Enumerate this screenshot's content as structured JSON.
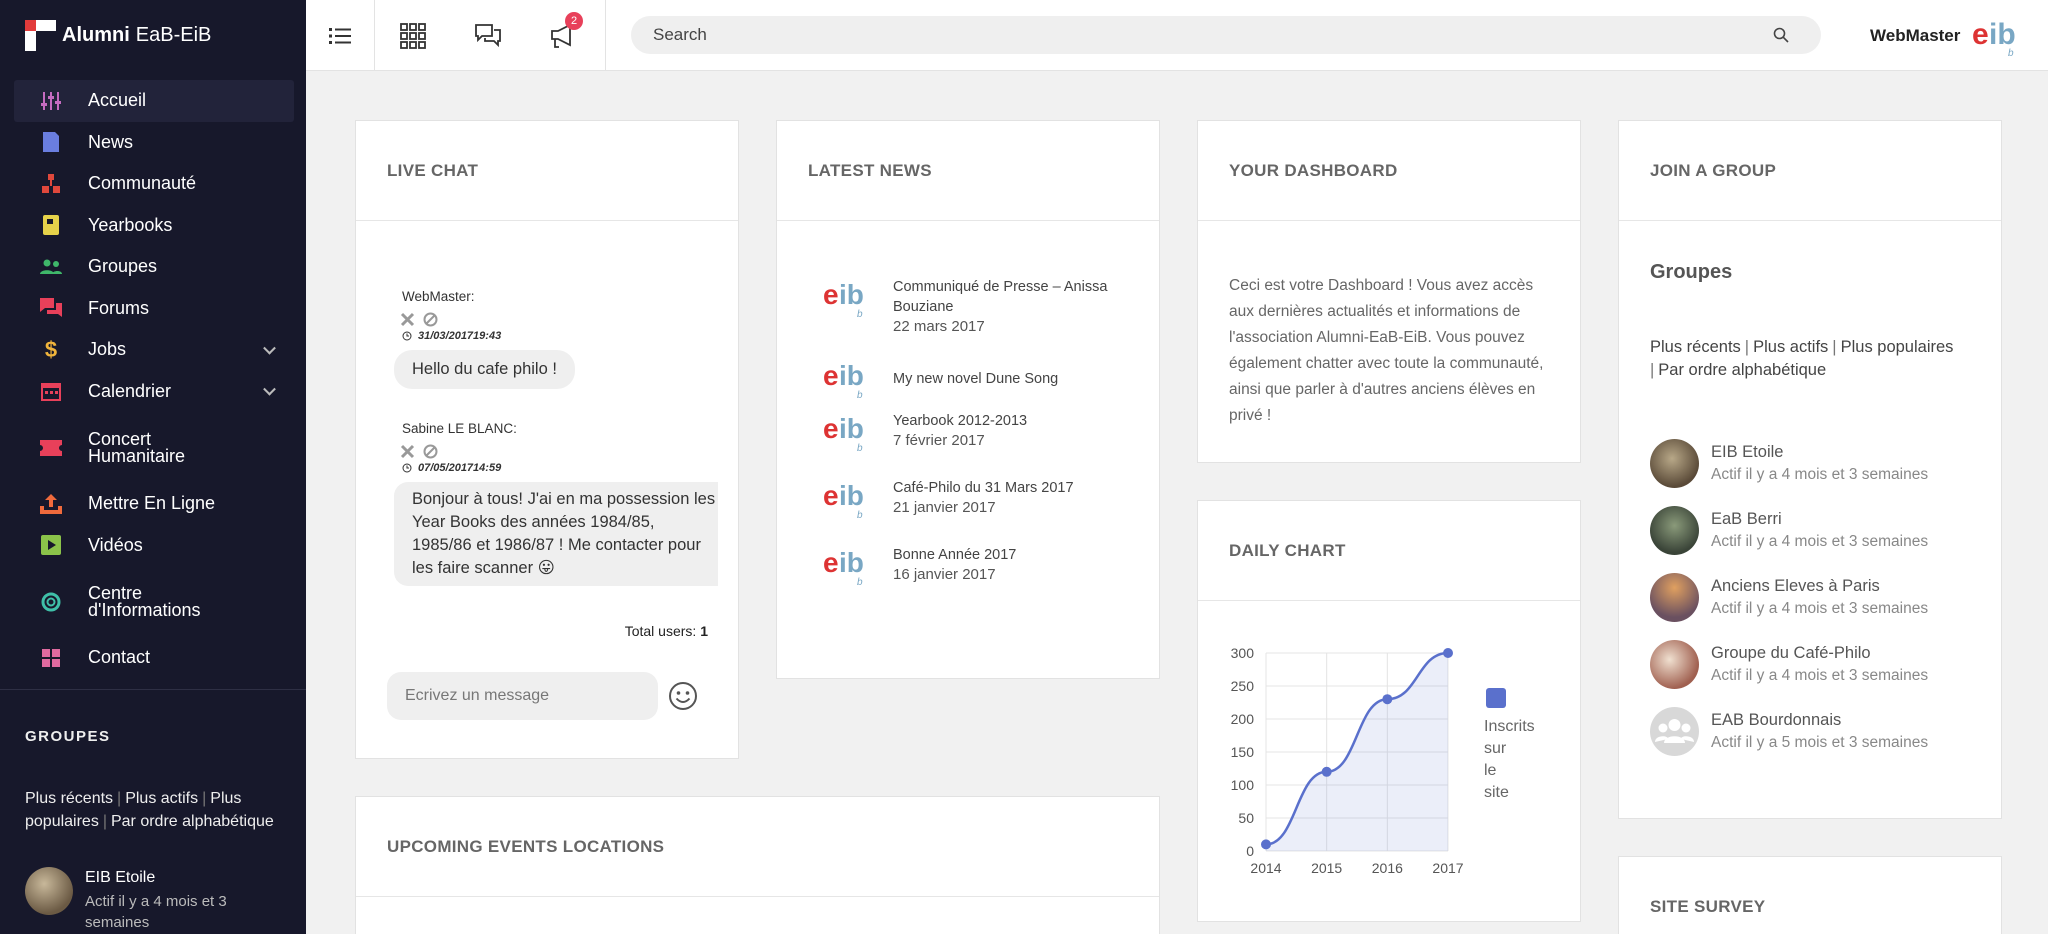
{
  "sidebar": {
    "logo_bold": "Alumni",
    "logo_rest": "EaB-EiB",
    "items": [
      {
        "label": "Accueil",
        "icon": "sliders-icon",
        "color": "#c56bc0"
      },
      {
        "label": "News",
        "icon": "document-icon",
        "color": "#6a7ee0"
      },
      {
        "label": "Communauté",
        "icon": "community-icon",
        "color": "#e0483c"
      },
      {
        "label": "Yearbooks",
        "icon": "book-icon",
        "color": "#e6d24a"
      },
      {
        "label": "Groupes",
        "icon": "people-icon",
        "color": "#3fb76a"
      },
      {
        "label": "Forums",
        "icon": "forum-icon",
        "color": "#e8405a"
      },
      {
        "label": "Jobs",
        "icon": "dollar-icon",
        "color": "#f0b43c"
      },
      {
        "label": "Calendrier",
        "icon": "calendar-icon",
        "color": "#e8405a"
      },
      {
        "label": "Concert Humanitaire",
        "icon": "ticket-icon",
        "color": "#e8405a"
      },
      {
        "label": "Mettre En Ligne",
        "icon": "upload-icon",
        "color": "#f06a3c"
      },
      {
        "label": "Vidéos",
        "icon": "video-icon",
        "color": "#8bc34a"
      },
      {
        "label": "Centre d'Informations",
        "icon": "lifebuoy-icon",
        "color": "#3fbfa8"
      },
      {
        "label": "Contact",
        "icon": "grid-icon",
        "color": "#e06aa0"
      }
    ],
    "groups_title": "GROUPES",
    "filters": [
      "Plus récents",
      "Plus actifs",
      "Plus populaires",
      "Par ordre alphabétique"
    ],
    "group": {
      "name": "EIB Etoile",
      "activity": "Actif il y a 4 mois et 3 semaines"
    }
  },
  "topbar": {
    "notification_count": "2",
    "search_placeholder": "Search",
    "user_name": "WebMaster"
  },
  "chat": {
    "title": "LIVE CHAT",
    "messages": [
      {
        "author": "WebMaster:",
        "time": "31/03/201719:43",
        "text": "Hello du cafe philo !"
      },
      {
        "author": "Sabine LE BLANC:",
        "time": "07/05/201714:59",
        "text": "Bonjour à tous! J'ai en ma possession les Year Books des années 1984/85, 1985/86 et 1986/87 ! Me contacter pour les faire scanner 😛"
      }
    ],
    "total_label": "Total users:",
    "total_value": "1",
    "input_placeholder": "Ecrivez un message"
  },
  "news": {
    "title": "LATEST NEWS",
    "items": [
      {
        "title": "Communiqué de Presse – Anissa Bouziane",
        "date": "22 mars 2017"
      },
      {
        "title": "My new novel Dune Song",
        "date": ""
      },
      {
        "title": "Yearbook 2012-2013",
        "date": "7 février 2017"
      },
      {
        "title": "Café-Philo du 31 Mars 2017",
        "date": "21 janvier 2017"
      },
      {
        "title": "Bonne Année 2017",
        "date": "16 janvier 2017"
      }
    ]
  },
  "dashboard": {
    "title": "YOUR DASHBOARD",
    "text": "Ceci est votre Dashboard ! Vous avez accès aux dernières actualités et informations de l'association Alumni-EaB-EiB. Vous pouvez également chatter avec toute la communauté, ainsi que parler à d'autres anciens élèves en privé !"
  },
  "daily_chart_title": "DAILY CHART",
  "chart_data": {
    "type": "area",
    "title": "DAILY CHART",
    "x": [
      "2014",
      "2015",
      "2016",
      "2017"
    ],
    "series": [
      {
        "name": "Inscrits sur le site",
        "values": [
          10,
          120,
          230,
          300
        ],
        "color": "#5a70cc"
      }
    ],
    "ylim": [
      0,
      300
    ],
    "yticks": [
      0,
      50,
      100,
      150,
      200,
      250,
      300
    ],
    "grid": true,
    "legend": "right"
  },
  "groups": {
    "card_title": "JOIN A GROUP",
    "title": "Groupes",
    "filters": [
      "Plus récents",
      "Plus actifs",
      "Plus populaires",
      "Par ordre alphabétique"
    ],
    "items": [
      {
        "name": "EIB Etoile",
        "activity": "Actif il y a 4 mois et 3 semaines"
      },
      {
        "name": "EaB Berri",
        "activity": "Actif il y a 4 mois et 3 semaines"
      },
      {
        "name": "Anciens Eleves à Paris",
        "activity": "Actif il y a 4 mois et 3 semaines"
      },
      {
        "name": "Groupe du Café-Philo",
        "activity": "Actif il y a 4 mois et 3 semaines"
      },
      {
        "name": "EAB Bourdonnais",
        "activity": "Actif il y a 5 mois et 3 semaines"
      }
    ]
  },
  "events_title": "UPCOMING EVENTS LOCATIONS",
  "survey_title": "SITE SURVEY"
}
